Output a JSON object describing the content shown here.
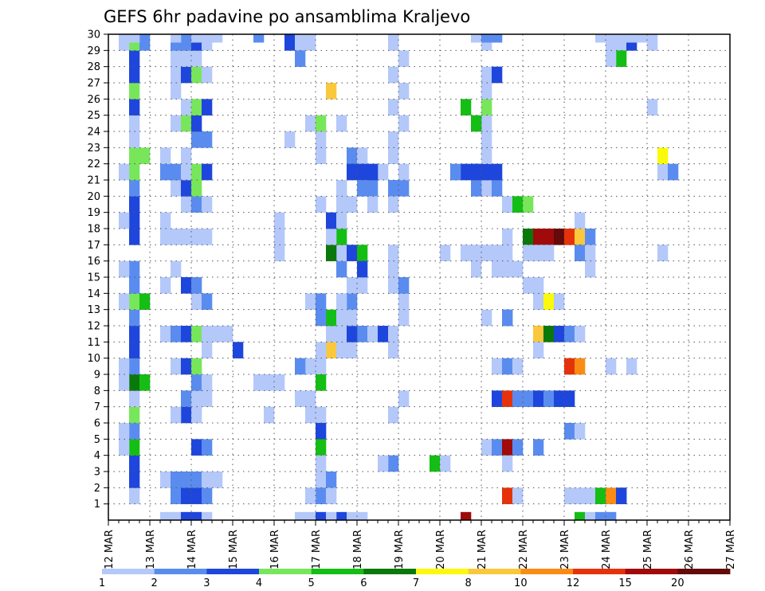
{
  "chart_data": {
    "type": "heatmap",
    "title": "GEFS 6hr padavine po ansamblima Kraljevo",
    "xlabel": "",
    "ylabel": "",
    "x_ticks": [
      "12 MAR",
      "13 MAR",
      "14 MAR",
      "15 MAR",
      "16 MAR",
      "17 MAR",
      "18 MAR",
      "19 MAR",
      "20 MAR",
      "21 MAR",
      "22 MAR",
      "23 MAR",
      "24 MAR",
      "25 MAR",
      "26 MAR",
      "27 MAR"
    ],
    "y_ticks": [
      "1",
      "2",
      "3",
      "4",
      "5",
      "6",
      "7",
      "8",
      "9",
      "10",
      "11",
      "12",
      "13",
      "14",
      "15",
      "16",
      "17",
      "18",
      "19",
      "20",
      "21",
      "22",
      "23",
      "24",
      "25",
      "26",
      "27",
      "28",
      "29",
      "30"
    ],
    "x_unit": "6h step from 12 MAR 00Z",
    "xlim": [
      0,
      60
    ],
    "ylim": [
      0,
      30
    ],
    "grid": true,
    "colorbar": {
      "placement": "bottom",
      "labels": [
        "1",
        "2",
        "3",
        "4",
        "5",
        "6",
        "7",
        "8",
        "10",
        "12",
        "15",
        "20"
      ],
      "colors": [
        "#b4c8fa",
        "#5a8cf0",
        "#1e46dc",
        "#78e65a",
        "#14be14",
        "#0a780a",
        "#fafa0a",
        "#fac83c",
        "#fa8c14",
        "#e6320a",
        "#a00a0a",
        "#640a0a"
      ]
    },
    "cells": [
      [
        2,
        1,
        1
      ],
      [
        2,
        2,
        3
      ],
      [
        2,
        3,
        3
      ],
      [
        2,
        4,
        5
      ],
      [
        1,
        4,
        1
      ],
      [
        2,
        5,
        2
      ],
      [
        1,
        5,
        1
      ],
      [
        2,
        6,
        4
      ],
      [
        2,
        7,
        1
      ],
      [
        2,
        8,
        6
      ],
      [
        3,
        8,
        5
      ],
      [
        1,
        8,
        1
      ],
      [
        2,
        9,
        2
      ],
      [
        1,
        9,
        1
      ],
      [
        2,
        10,
        3
      ],
      [
        2,
        11,
        3
      ],
      [
        2,
        12,
        2
      ],
      [
        2,
        13,
        4
      ],
      [
        3,
        13,
        5
      ],
      [
        1,
        13,
        1
      ],
      [
        2,
        14,
        2
      ],
      [
        2,
        15,
        2
      ],
      [
        1,
        15,
        1
      ],
      [
        2,
        17,
        3
      ],
      [
        2,
        18,
        3
      ],
      [
        1,
        18,
        1
      ],
      [
        2,
        19,
        3
      ],
      [
        2,
        20,
        2
      ],
      [
        2,
        21,
        4
      ],
      [
        1,
        21,
        1
      ],
      [
        2,
        22,
        4
      ],
      [
        3,
        22,
        4
      ],
      [
        2,
        23,
        1
      ],
      [
        2,
        24,
        1
      ],
      [
        2,
        25,
        3
      ],
      [
        2,
        26,
        4
      ],
      [
        2,
        27,
        3
      ],
      [
        2,
        28,
        3
      ],
      [
        2,
        29,
        4
      ],
      [
        1,
        29,
        1
      ],
      [
        3,
        29,
        2
      ],
      [
        2,
        30,
        1
      ],
      [
        5,
        0,
        1
      ],
      [
        6,
        0,
        1
      ],
      [
        7,
        0,
        3
      ],
      [
        8,
        0,
        3
      ],
      [
        9,
        0,
        1
      ],
      [
        6,
        1,
        2
      ],
      [
        7,
        1,
        3
      ],
      [
        8,
        1,
        3
      ],
      [
        9,
        1,
        2
      ],
      [
        5,
        2,
        1
      ],
      [
        6,
        2,
        2
      ],
      [
        7,
        2,
        2
      ],
      [
        8,
        2,
        2
      ],
      [
        9,
        2,
        1
      ],
      [
        10,
        2,
        1
      ],
      [
        8,
        4,
        3
      ],
      [
        9,
        4,
        2
      ],
      [
        7,
        6,
        3
      ],
      [
        6,
        6,
        1
      ],
      [
        8,
        6,
        1
      ],
      [
        7,
        7,
        2
      ],
      [
        8,
        7,
        1
      ],
      [
        9,
        7,
        1
      ],
      [
        8,
        8,
        2
      ],
      [
        9,
        8,
        1
      ],
      [
        6,
        9,
        1
      ],
      [
        7,
        9,
        3
      ],
      [
        8,
        9,
        4
      ],
      [
        9,
        10,
        1
      ],
      [
        5,
        11,
        1
      ],
      [
        6,
        11,
        2
      ],
      [
        7,
        11,
        3
      ],
      [
        8,
        11,
        4
      ],
      [
        9,
        11,
        1
      ],
      [
        11,
        11,
        1
      ],
      [
        8,
        13,
        1
      ],
      [
        9,
        13,
        2
      ],
      [
        5,
        14,
        1
      ],
      [
        7,
        14,
        3
      ],
      [
        8,
        14,
        2
      ],
      [
        6,
        15,
        1
      ],
      [
        5,
        17,
        1
      ],
      [
        6,
        17,
        1
      ],
      [
        7,
        17,
        1
      ],
      [
        8,
        17,
        1
      ],
      [
        9,
        17,
        1
      ],
      [
        5,
        18,
        1
      ],
      [
        7,
        19,
        1
      ],
      [
        8,
        19,
        2
      ],
      [
        9,
        19,
        1
      ],
      [
        6,
        20,
        1
      ],
      [
        7,
        20,
        3
      ],
      [
        8,
        20,
        4
      ],
      [
        5,
        21,
        2
      ],
      [
        6,
        21,
        2
      ],
      [
        7,
        21,
        1
      ],
      [
        8,
        21,
        4
      ],
      [
        9,
        21,
        3
      ],
      [
        5,
        22,
        1
      ],
      [
        7,
        22,
        1
      ],
      [
        8,
        23,
        2
      ],
      [
        9,
        23,
        2
      ],
      [
        6,
        24,
        1
      ],
      [
        7,
        24,
        4
      ],
      [
        8,
        24,
        3
      ],
      [
        7,
        25,
        1
      ],
      [
        8,
        25,
        4
      ],
      [
        9,
        25,
        3
      ],
      [
        6,
        26,
        1
      ],
      [
        6,
        27,
        1
      ],
      [
        7,
        27,
        3
      ],
      [
        8,
        27,
        4
      ],
      [
        9,
        27,
        1
      ],
      [
        6,
        28,
        1
      ],
      [
        7,
        28,
        1
      ],
      [
        8,
        28,
        1
      ],
      [
        6,
        29,
        2
      ],
      [
        7,
        29,
        2
      ],
      [
        8,
        29,
        3
      ],
      [
        9,
        29,
        1
      ],
      [
        6,
        30,
        1
      ],
      [
        8,
        30,
        1
      ],
      [
        9,
        30,
        1
      ],
      [
        10,
        30,
        1
      ],
      [
        14,
        30,
        2
      ],
      [
        18,
        30,
        3
      ],
      [
        17,
        29,
        3
      ],
      [
        18,
        29,
        1
      ],
      [
        19,
        29,
        1
      ],
      [
        18,
        28,
        2
      ],
      [
        12,
        10,
        3
      ],
      [
        10,
        11,
        1
      ],
      [
        14,
        8,
        1
      ],
      [
        15,
        8,
        1
      ],
      [
        16,
        8,
        1
      ],
      [
        15,
        6,
        1
      ],
      [
        18,
        0,
        1
      ],
      [
        19,
        0,
        1
      ],
      [
        18,
        7,
        1
      ],
      [
        19,
        7,
        1
      ],
      [
        19,
        6,
        1
      ],
      [
        20,
        6,
        1
      ],
      [
        20,
        5,
        3
      ],
      [
        20,
        4,
        5
      ],
      [
        20,
        2,
        1
      ],
      [
        21,
        2,
        2
      ],
      [
        19,
        9,
        1
      ],
      [
        18,
        9,
        2
      ],
      [
        20,
        9,
        1
      ],
      [
        20,
        8,
        5
      ],
      [
        21,
        10,
        8
      ],
      [
        22,
        10,
        1
      ],
      [
        23,
        10,
        1
      ],
      [
        20,
        10,
        1
      ],
      [
        22,
        11,
        1
      ],
      [
        21,
        11,
        1
      ],
      [
        21,
        12,
        5
      ],
      [
        20,
        12,
        2
      ],
      [
        19,
        13,
        1
      ],
      [
        20,
        13,
        2
      ],
      [
        20,
        19,
        1
      ],
      [
        19,
        24,
        1
      ],
      [
        20,
        24,
        4
      ],
      [
        20,
        22,
        1
      ],
      [
        20,
        23,
        1
      ],
      [
        22,
        15,
        2
      ],
      [
        22,
        16,
        1
      ],
      [
        21,
        16,
        6
      ],
      [
        22,
        17,
        5
      ],
      [
        23,
        16,
        3
      ],
      [
        24,
        16,
        5
      ],
      [
        21,
        17,
        1
      ],
      [
        21,
        18,
        3
      ],
      [
        22,
        18,
        1
      ],
      [
        22,
        24,
        1
      ],
      [
        22,
        19,
        1
      ],
      [
        23,
        19,
        1
      ],
      [
        22,
        20,
        1
      ],
      [
        21,
        26,
        8
      ],
      [
        22,
        0,
        3
      ],
      [
        23,
        0,
        1
      ],
      [
        24,
        0,
        1
      ],
      [
        23,
        22,
        2
      ],
      [
        24,
        22,
        1
      ],
      [
        23,
        21,
        3
      ],
      [
        24,
        21,
        3
      ],
      [
        25,
        21,
        1
      ],
      [
        24,
        20,
        2
      ],
      [
        25,
        20,
        2
      ],
      [
        23,
        13,
        2
      ],
      [
        22,
        13,
        1
      ],
      [
        24,
        14,
        1
      ],
      [
        24,
        11,
        2
      ],
      [
        23,
        11,
        3
      ],
      [
        25,
        11,
        1
      ],
      [
        22,
        12,
        1
      ],
      [
        23,
        12,
        1
      ],
      [
        24,
        15,
        3
      ],
      [
        23,
        14,
        1
      ],
      [
        26,
        11,
        3
      ],
      [
        20,
        0,
        3
      ],
      [
        21,
        0,
        1
      ],
      [
        20,
        1,
        2
      ],
      [
        21,
        1,
        1
      ],
      [
        19,
        1,
        1
      ],
      [
        20,
        3,
        1
      ],
      [
        16,
        17,
        1
      ],
      [
        16,
        18,
        1
      ],
      [
        16,
        16,
        1
      ],
      [
        17,
        23,
        1
      ],
      [
        22,
        20,
        1
      ],
      [
        27,
        20,
        2
      ],
      [
        28,
        20,
        2
      ],
      [
        27,
        20,
        2
      ],
      [
        26,
        21,
        1
      ],
      [
        25,
        21,
        3
      ],
      [
        27,
        22,
        1
      ],
      [
        28,
        21,
        1
      ],
      [
        25,
        19,
        1
      ],
      [
        27,
        16,
        1
      ],
      [
        27,
        22,
        1
      ],
      [
        27,
        3,
        2
      ],
      [
        26,
        3,
        1
      ],
      [
        27,
        6,
        1
      ],
      [
        28,
        7,
        1
      ],
      [
        27,
        10,
        1
      ],
      [
        27,
        11,
        1
      ],
      [
        28,
        12,
        1
      ],
      [
        28,
        13,
        1
      ],
      [
        27,
        14,
        1
      ],
      [
        28,
        14,
        2
      ],
      [
        27,
        15,
        1
      ],
      [
        27,
        19,
        1
      ],
      [
        27,
        23,
        1
      ],
      [
        28,
        24,
        1
      ],
      [
        27,
        25,
        1
      ],
      [
        28,
        26,
        1
      ],
      [
        27,
        27,
        1
      ],
      [
        28,
        28,
        1
      ],
      [
        27,
        29,
        1
      ],
      [
        27,
        30,
        1
      ],
      [
        31,
        3,
        5
      ],
      [
        32,
        3,
        1
      ],
      [
        34,
        0,
        11
      ],
      [
        36,
        20,
        1
      ],
      [
        35,
        20,
        2
      ],
      [
        37,
        20,
        2
      ],
      [
        35,
        21,
        2
      ],
      [
        36,
        21,
        3
      ],
      [
        37,
        21,
        3
      ],
      [
        36,
        22,
        1
      ],
      [
        36,
        23,
        1
      ],
      [
        36,
        24,
        1
      ],
      [
        36,
        25,
        4
      ],
      [
        36,
        26,
        1
      ],
      [
        36,
        27,
        1
      ],
      [
        37,
        27,
        3
      ],
      [
        36,
        29,
        1
      ],
      [
        35,
        30,
        1
      ],
      [
        36,
        30,
        1
      ],
      [
        35,
        16,
        1
      ],
      [
        35,
        15,
        1
      ],
      [
        36,
        16,
        1
      ],
      [
        36,
        30,
        2
      ],
      [
        37,
        30,
        2
      ],
      [
        34,
        25,
        5
      ],
      [
        35,
        24,
        5
      ],
      [
        34,
        21,
        3
      ],
      [
        33,
        21,
        2
      ],
      [
        35,
        21,
        3
      ],
      [
        32,
        16,
        1
      ],
      [
        34,
        16,
        1
      ],
      [
        36,
        12,
        1
      ],
      [
        38,
        12,
        2
      ],
      [
        36,
        4,
        1
      ],
      [
        37,
        4,
        2
      ],
      [
        38,
        4,
        11
      ],
      [
        39,
        4,
        2
      ],
      [
        41,
        4,
        2
      ],
      [
        38,
        3,
        1
      ],
      [
        38,
        1,
        10
      ],
      [
        39,
        1,
        1
      ],
      [
        37,
        7,
        3
      ],
      [
        38,
        7,
        10
      ],
      [
        39,
        7,
        2
      ],
      [
        40,
        7,
        2
      ],
      [
        41,
        7,
        3
      ],
      [
        42,
        7,
        2
      ],
      [
        43,
        7,
        3
      ],
      [
        37,
        9,
        1
      ],
      [
        38,
        9,
        2
      ],
      [
        39,
        9,
        1
      ],
      [
        38,
        12,
        2
      ],
      [
        38,
        15,
        1
      ],
      [
        37,
        15,
        1
      ],
      [
        39,
        15,
        1
      ],
      [
        38,
        16,
        1
      ],
      [
        37,
        16,
        1
      ],
      [
        38,
        17,
        1
      ],
      [
        38,
        19,
        1
      ],
      [
        39,
        19,
        5
      ],
      [
        40,
        19,
        4
      ],
      [
        40,
        17,
        6
      ],
      [
        41,
        17,
        11
      ],
      [
        42,
        17,
        11
      ],
      [
        43,
        17,
        12
      ],
      [
        44,
        17,
        10
      ],
      [
        45,
        17,
        8
      ],
      [
        46,
        17,
        2
      ],
      [
        40,
        16,
        1
      ],
      [
        41,
        16,
        1
      ],
      [
        42,
        16,
        1
      ],
      [
        45,
        16,
        2
      ],
      [
        46,
        16,
        1
      ],
      [
        46,
        15,
        1
      ],
      [
        40,
        14,
        1
      ],
      [
        41,
        14,
        1
      ],
      [
        41,
        13,
        1
      ],
      [
        42,
        13,
        7
      ],
      [
        43,
        13,
        1
      ],
      [
        41,
        11,
        8
      ],
      [
        42,
        11,
        6
      ],
      [
        43,
        11,
        3
      ],
      [
        44,
        11,
        2
      ],
      [
        45,
        11,
        1
      ],
      [
        41,
        10,
        1
      ],
      [
        44,
        9,
        10
      ],
      [
        45,
        9,
        9
      ],
      [
        44,
        7,
        3
      ],
      [
        44,
        5,
        2
      ],
      [
        45,
        5,
        1
      ],
      [
        44,
        1,
        1
      ],
      [
        45,
        1,
        1
      ],
      [
        46,
        1,
        1
      ],
      [
        47,
        1,
        5
      ],
      [
        48,
        1,
        9
      ],
      [
        49,
        1,
        3
      ],
      [
        45,
        0,
        5
      ],
      [
        46,
        0,
        1
      ],
      [
        47,
        0,
        2
      ],
      [
        48,
        0,
        2
      ],
      [
        48,
        9,
        1
      ],
      [
        50,
        9,
        1
      ],
      [
        49,
        1,
        3
      ],
      [
        45,
        18,
        1
      ],
      [
        53,
        16,
        1
      ],
      [
        49,
        29,
        1
      ],
      [
        50,
        29,
        3
      ],
      [
        48,
        29,
        1
      ],
      [
        49,
        28,
        5
      ],
      [
        48,
        28,
        1
      ],
      [
        47,
        30,
        1
      ],
      [
        50,
        30,
        1
      ],
      [
        51,
        30,
        1
      ],
      [
        52,
        25,
        1
      ],
      [
        53,
        21,
        1
      ],
      [
        54,
        21,
        2
      ],
      [
        53,
        22,
        7
      ],
      [
        52,
        29,
        1
      ]
    ]
  }
}
